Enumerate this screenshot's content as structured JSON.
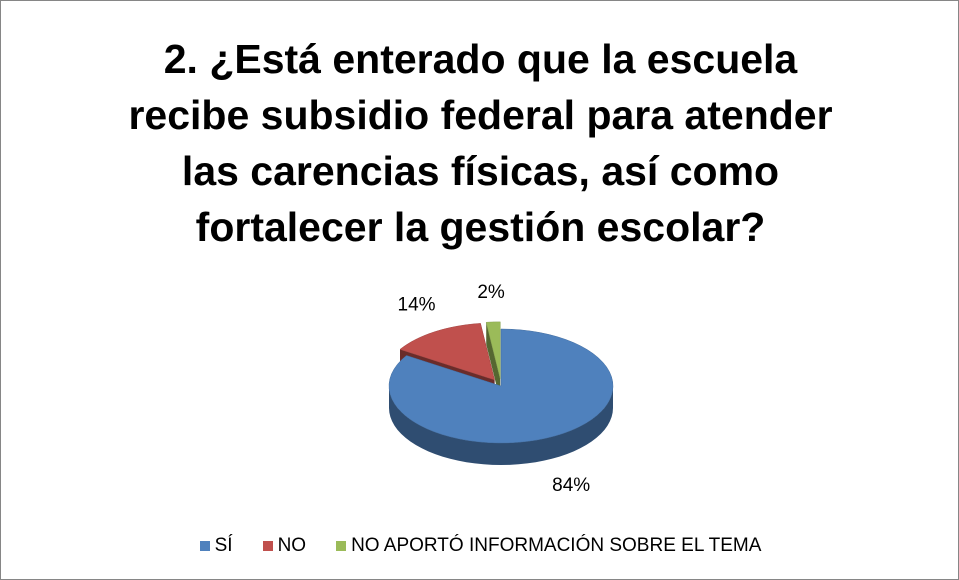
{
  "chart_data": {
    "type": "pie",
    "title": "2. ¿Está enterado que la escuela\nrecibe subsidio federal para atender\nlas carencias físicas, así como\nfortalecer la gestión escolar?",
    "categories": [
      "SÍ",
      "NO",
      "NO APORTÓ INFORMACIÓN SOBRE EL TEMA"
    ],
    "values": [
      84,
      14,
      2
    ],
    "value_labels": [
      "84%",
      "14%",
      "2%"
    ],
    "colors": [
      "#4f81bd",
      "#c0504d",
      "#9bbb59"
    ],
    "legend": "bottom"
  }
}
